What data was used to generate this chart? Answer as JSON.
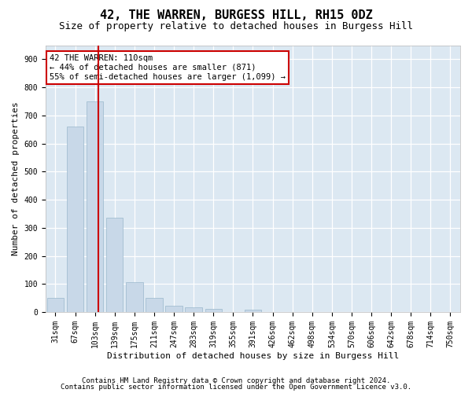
{
  "title": "42, THE WARREN, BURGESS HILL, RH15 0DZ",
  "subtitle": "Size of property relative to detached houses in Burgess Hill",
  "xlabel": "Distribution of detached houses by size in Burgess Hill",
  "ylabel": "Number of detached properties",
  "bar_labels": [
    "31sqm",
    "67sqm",
    "103sqm",
    "139sqm",
    "175sqm",
    "211sqm",
    "247sqm",
    "283sqm",
    "319sqm",
    "355sqm",
    "391sqm",
    "426sqm",
    "462sqm",
    "498sqm",
    "534sqm",
    "570sqm",
    "606sqm",
    "642sqm",
    "678sqm",
    "714sqm",
    "750sqm"
  ],
  "bar_values": [
    50,
    660,
    750,
    335,
    105,
    50,
    22,
    16,
    10,
    0,
    8,
    0,
    0,
    0,
    0,
    0,
    0,
    0,
    0,
    0,
    0
  ],
  "bar_color": "#c8d8e8",
  "bar_edgecolor": "#9ab8cc",
  "property_line_bin_index": 2.18,
  "annotation_line1": "42 THE WARREN: 110sqm",
  "annotation_line2": "← 44% of detached houses are smaller (871)",
  "annotation_line3": "55% of semi-detached houses are larger (1,099) →",
  "annotation_box_color": "#ffffff",
  "annotation_box_edgecolor": "#cc0000",
  "vline_color": "#cc0000",
  "ylim": [
    0,
    950
  ],
  "yticks": [
    0,
    100,
    200,
    300,
    400,
    500,
    600,
    700,
    800,
    900
  ],
  "fig_background": "#ffffff",
  "plot_background": "#dce8f2",
  "grid_color": "#ffffff",
  "title_fontsize": 11,
  "subtitle_fontsize": 9,
  "ylabel_fontsize": 8,
  "xlabel_fontsize": 8,
  "tick_fontsize": 7,
  "footer_line1": "Contains HM Land Registry data © Crown copyright and database right 2024.",
  "footer_line2": "Contains public sector information licensed under the Open Government Licence v3.0.",
  "footer_fontsize": 6.5
}
